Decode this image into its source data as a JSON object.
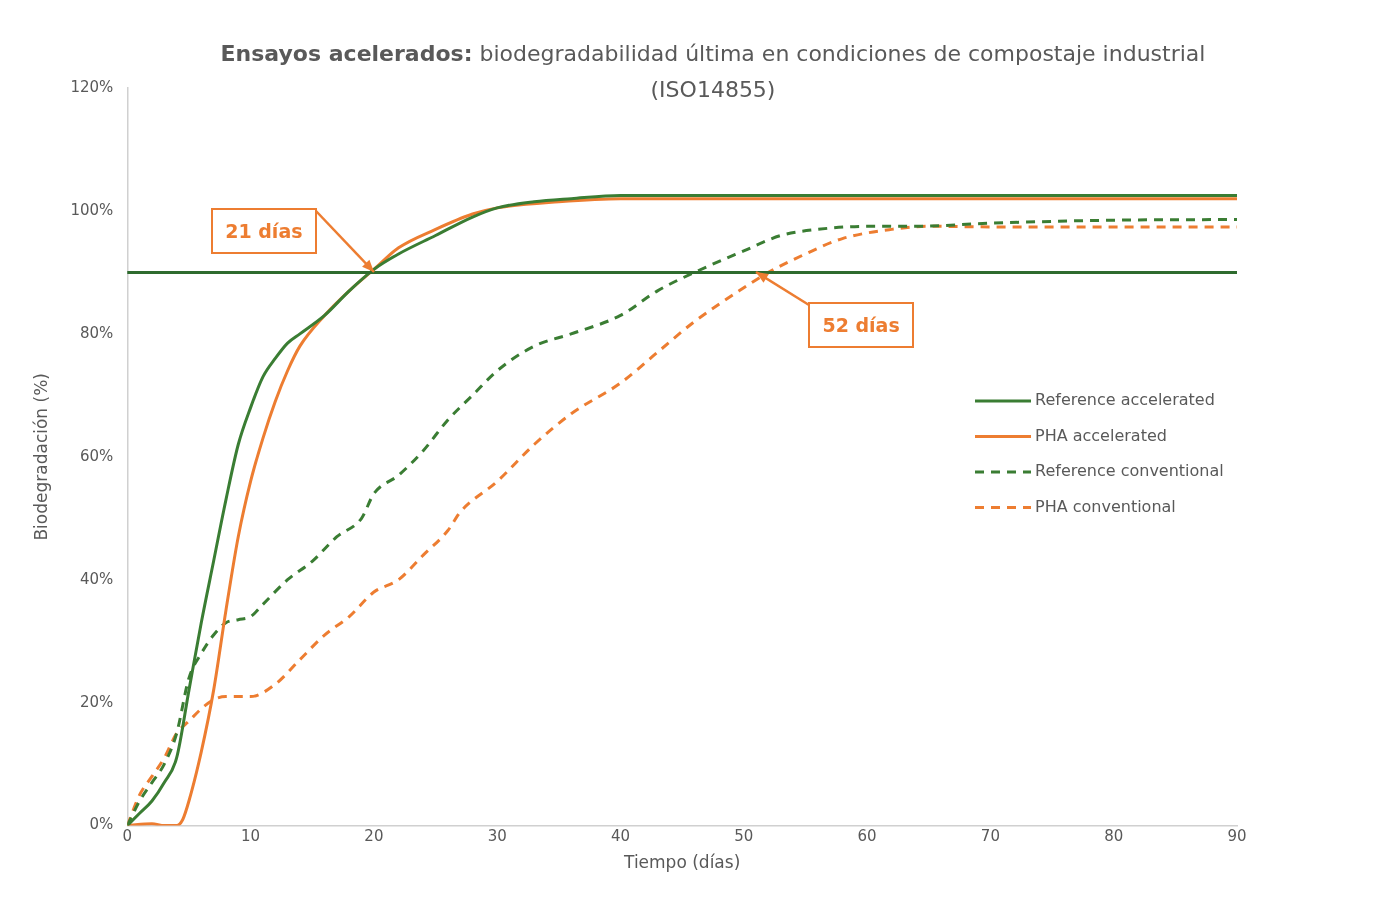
{
  "chart_data": {
    "type": "line",
    "title": "Ensayos acelerados: biodegradabilidad última en condiciones de compostaje industrial (ISO14855)",
    "xlabel": "Tiempo (días)",
    "ylabel": "Biodegradación (%)",
    "xlim": [
      0,
      90
    ],
    "xticks": [
      0,
      10,
      20,
      30,
      40,
      50,
      60,
      70,
      80,
      90
    ],
    "ylim": [
      0,
      120
    ],
    "yticks": [
      {
        "value": 0,
        "label": "0%"
      },
      {
        "value": 20,
        "label": "20%"
      },
      {
        "value": 40,
        "label": "40%"
      },
      {
        "value": 60,
        "label": "60%"
      },
      {
        "value": 80,
        "label": "80%"
      },
      {
        "value": 100,
        "label": "100%"
      },
      {
        "value": 120,
        "label": "120%"
      }
    ],
    "grid": false,
    "legend": "right",
    "series": [
      {
        "name": "Reference accelerated",
        "color": "#3a7d33",
        "line_style": "solid",
        "x": [
          0,
          1,
          2,
          3,
          4,
          5,
          6,
          7,
          8,
          9,
          10,
          11,
          12,
          13,
          14,
          16,
          18,
          20,
          22,
          25,
          28,
          30,
          33,
          36,
          40,
          90
        ],
        "values": [
          0,
          2,
          4,
          7,
          11,
          22,
          33,
          43,
          53,
          62,
          68,
          73,
          76,
          78.5,
          80,
          83,
          87,
          90.5,
          93,
          96,
          99,
          100.5,
          101.5,
          102,
          102.5,
          102.5
        ]
      },
      {
        "name": "PHA accelerated",
        "color": "#ed7d31",
        "line_style": "solid",
        "x": [
          0,
          2,
          3,
          4,
          4.5,
          5,
          6,
          7,
          8,
          9,
          10,
          11,
          12,
          13,
          14,
          16,
          18,
          20,
          22,
          25,
          28,
          30,
          35,
          40,
          90
        ],
        "values": [
          0,
          0.3,
          0,
          0,
          1,
          4,
          12,
          22,
          35,
          47,
          56,
          63,
          69,
          74,
          78,
          83,
          87,
          90.5,
          94,
          97,
          99.5,
          100.5,
          101.5,
          102,
          102
        ]
      },
      {
        "name": "Reference conventional",
        "color": "#3a7d33",
        "line_style": "dashed",
        "x": [
          0,
          1,
          2,
          3,
          4,
          5,
          6,
          7,
          8,
          9,
          10,
          11,
          13,
          15,
          17,
          19,
          20,
          22,
          24,
          26,
          28,
          30,
          33,
          36,
          40,
          43,
          46,
          50,
          53,
          56,
          60,
          64,
          70,
          80,
          90
        ],
        "values": [
          0,
          4,
          7,
          10,
          15,
          24,
          28,
          31,
          33,
          33.5,
          34,
          36,
          40,
          43,
          47,
          50,
          54,
          57,
          61,
          66,
          70,
          74,
          78,
          80,
          83,
          87,
          90,
          93.5,
          96,
          97,
          97.5,
          97.5,
          98,
          98.5,
          98.6
        ]
      },
      {
        "name": "PHA conventional",
        "color": "#ed7d31",
        "line_style": "dashed",
        "x": [
          0,
          1,
          2,
          3,
          4,
          5,
          6,
          7,
          8,
          10,
          12,
          14,
          16,
          18,
          20,
          22,
          24,
          26,
          27,
          30,
          33,
          36,
          40,
          43,
          46,
          50,
          52,
          55,
          58,
          62,
          65,
          70,
          80,
          90
        ],
        "values": [
          0,
          5,
          8,
          11,
          15,
          17,
          19,
          20.5,
          21,
          21,
          23,
          27,
          31,
          34,
          38,
          40,
          44,
          48,
          51,
          56,
          62,
          67,
          72,
          77,
          82,
          87.5,
          90,
          93,
          95.5,
          97,
          97.5,
          97.4,
          97.4,
          97.4
        ]
      }
    ],
    "ref_lines": [
      {
        "axis": "y",
        "value": 90,
        "color": "#2e6b2e",
        "line_style": "solid"
      }
    ],
    "annotations": [
      {
        "text": "21 días",
        "x": 20,
        "y": 90
      },
      {
        "text": "52 días",
        "x": 51,
        "y": 90
      }
    ]
  }
}
